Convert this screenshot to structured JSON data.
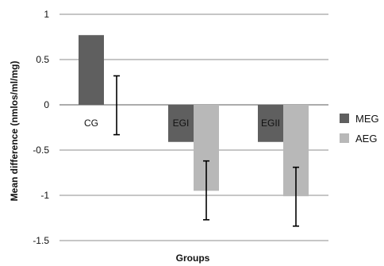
{
  "chart_data": {
    "type": "bar",
    "title": "",
    "xlabel": "Groups",
    "ylabel": "Mean difference (nmlos/ml/mg)",
    "ylim": [
      -1.5,
      1
    ],
    "yticks": [
      1,
      0.5,
      0,
      -0.5,
      -1,
      -1.5
    ],
    "ytick_labels": [
      "1",
      "0.5",
      "0",
      "-0.5",
      "-1",
      "-1.5"
    ],
    "grid": true,
    "legend_position": "right",
    "categories": [
      "CG",
      "EGI",
      "EGII"
    ],
    "series": [
      {
        "name": "MEG",
        "color": "#5f5f5f",
        "values": [
          0.77,
          -0.41,
          -0.41
        ]
      },
      {
        "name": "AEG",
        "color": "#b8b8b8",
        "values": [
          0.0,
          -0.95,
          -1.01
        ],
        "error_low": [
          -0.33,
          -1.27,
          -1.34
        ],
        "error_high": [
          0.32,
          -0.62,
          -0.69
        ]
      }
    ]
  }
}
